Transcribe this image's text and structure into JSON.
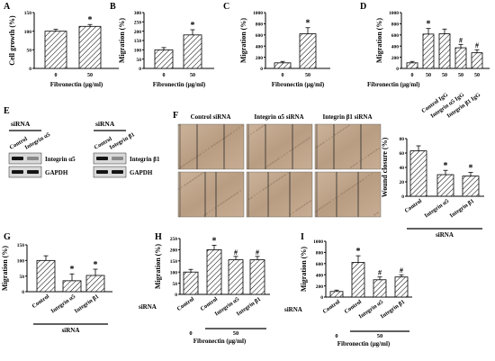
{
  "chart_data": [
    {
      "panel": "A",
      "type": "bar",
      "ylabel": "Cell growth (%)",
      "xlabel": "Fibronectin (μg/ml)",
      "categories": [
        "0",
        "50"
      ],
      "values": [
        100,
        113
      ],
      "errors": [
        5,
        5
      ],
      "ylim": [
        0,
        150
      ],
      "yticks": [
        "0",
        "50",
        "100",
        "150"
      ],
      "annotations": [
        "",
        "*"
      ]
    },
    {
      "panel": "B",
      "type": "bar",
      "ylabel": "Migration (%)",
      "xlabel": "Fibronectin (μg/ml)",
      "categories": [
        "0",
        "50"
      ],
      "values": [
        100,
        180
      ],
      "errors": [
        12,
        28
      ],
      "ylim": [
        0,
        300
      ],
      "yticks": [
        "0",
        "50",
        "100",
        "150",
        "200",
        "250",
        "300"
      ],
      "annotations": [
        "",
        "*"
      ]
    },
    {
      "panel": "C",
      "type": "bar",
      "ylabel": "Migration (%)",
      "xlabel": "Fibronectin (μg/ml)",
      "categories": [
        "0",
        "50"
      ],
      "values": [
        100,
        620
      ],
      "errors": [
        25,
        110
      ],
      "ylim": [
        0,
        1000
      ],
      "yticks": [
        "0",
        "200",
        "400",
        "600",
        "800",
        "1000"
      ],
      "annotations": [
        "",
        "*"
      ]
    },
    {
      "panel": "D",
      "type": "bar",
      "ylabel": "Migration (%)",
      "xlabel": "Fibronectin (μg/ml)",
      "categories": [
        "0",
        "50",
        "50",
        "50",
        "50"
      ],
      "values": [
        100,
        615,
        620,
        370,
        280
      ],
      "errors": [
        25,
        100,
        85,
        60,
        55
      ],
      "ylim": [
        0,
        1000
      ],
      "yticks": [
        "0",
        "200",
        "400",
        "600",
        "800",
        "1000"
      ],
      "annotations": [
        "",
        "*",
        "",
        "#",
        "#"
      ],
      "group_labels": [
        "Control IgG",
        "Integrin α5 IgG",
        "Integrin β1 IgG"
      ]
    },
    {
      "panel": "F",
      "type": "bar",
      "ylabel": "Wound closure (%)",
      "xlabel": "siRNA",
      "categories": [
        "Control",
        "Integrin α5",
        "Integrin β1"
      ],
      "values": [
        63,
        30,
        28
      ],
      "errors": [
        7,
        6,
        5
      ],
      "ylim": [
        0,
        80
      ],
      "yticks": [
        "0",
        "20",
        "40",
        "60",
        "80"
      ],
      "annotations": [
        "",
        "*",
        "*"
      ]
    },
    {
      "panel": "G",
      "type": "bar",
      "ylabel": "Migration (%)",
      "xlabel": "siRNA",
      "categories": [
        "Control",
        "Integrin α5",
        "Integrin β1"
      ],
      "values": [
        100,
        35,
        52
      ],
      "errors": [
        15,
        22,
        20
      ],
      "ylim": [
        0,
        150
      ],
      "yticks": [
        "0",
        "50",
        "100",
        "150"
      ],
      "annotations": [
        "",
        "*",
        "*"
      ]
    },
    {
      "panel": "H",
      "type": "bar",
      "ylabel": "Migration (%)",
      "xlabel": "Fibronectin (μg/ml)",
      "categories": [
        "Control",
        "Control",
        "Integrin α5",
        "Integrin β1"
      ],
      "values": [
        100,
        200,
        155,
        155
      ],
      "errors": [
        12,
        20,
        15,
        15
      ],
      "ylim": [
        0,
        250
      ],
      "yticks": [
        "0",
        "50",
        "100",
        "150",
        "200",
        "250"
      ],
      "annotations": [
        "",
        "*",
        "#",
        "#"
      ],
      "row_label": "siRNA",
      "dose_labels": [
        "0",
        "50"
      ]
    },
    {
      "panel": "I",
      "type": "bar",
      "ylabel": "Migration (%)",
      "xlabel": "Fibronectin (μg/ml)",
      "categories": [
        "Control",
        "Control",
        "Integrin α5",
        "Integrin β1"
      ],
      "values": [
        100,
        620,
        310,
        360
      ],
      "errors": [
        25,
        120,
        50,
        40
      ],
      "ylim": [
        0,
        1000
      ],
      "yticks": [
        "0",
        "200",
        "400",
        "600",
        "800",
        "1000"
      ],
      "annotations": [
        "",
        "*",
        "#",
        "#"
      ],
      "row_label": "siRNA",
      "dose_labels": [
        "0",
        "50"
      ]
    }
  ],
  "blots": {
    "panel": "E",
    "left": {
      "header": "siRNA",
      "lanes": [
        "Control",
        "Integrin α5"
      ],
      "bands": [
        "Integrin α5",
        "GAPDH"
      ]
    },
    "right": {
      "header": "siRNA",
      "lanes": [
        "Control",
        "Integrin β1"
      ],
      "bands": [
        "Integrin β1",
        "GAPDH"
      ]
    }
  },
  "micrographs": {
    "panel": "F",
    "columns": [
      "Control siRNA",
      "Integrin α5 siRNA",
      "Integrin β1 siRNA"
    ]
  }
}
